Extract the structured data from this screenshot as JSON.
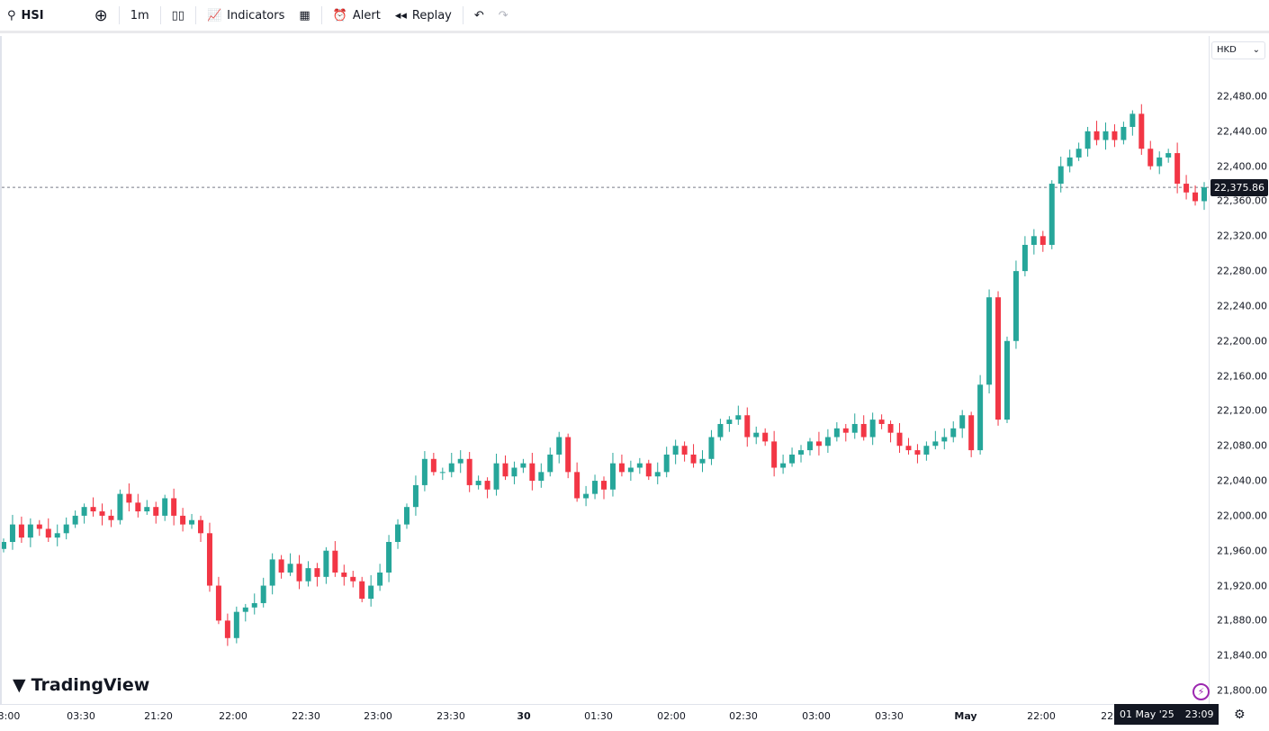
{
  "toolbar": {
    "symbol": "HSI",
    "interval": "1m",
    "indicators": "Indicators",
    "alert": "Alert",
    "replay": "Replay"
  },
  "currency": "HKD",
  "current_price": "22,375.86",
  "crosshair_date": "01 May '25",
  "crosshair_time": "23:09",
  "brand": "TradingView",
  "colors": {
    "up": "#26a69a",
    "down": "#f23645"
  },
  "chart_data": {
    "type": "candlestick",
    "ylim": [
      21790,
      22510
    ],
    "y_ticks": [
      "22,480.00",
      "22,440.00",
      "22,400.00",
      "22,360.00",
      "22,320.00",
      "22,280.00",
      "22,240.00",
      "22,200.00",
      "22,160.00",
      "22,120.00",
      "22,080.00",
      "22,040.00",
      "22,000.00",
      "21,960.00",
      "21,920.00",
      "21,880.00",
      "21,840.00",
      "21,800.00"
    ],
    "x_ticks": [
      "3:00",
      "03:30",
      "21:20",
      "22:00",
      "22:30",
      "23:00",
      "23:30",
      "30",
      "01:30",
      "02:00",
      "02:30",
      "03:00",
      "03:30",
      "May",
      "22:00",
      "22:"
    ],
    "closes": [
      21970,
      21990,
      21975,
      21990,
      21985,
      21975,
      21980,
      21990,
      22000,
      22010,
      22005,
      22000,
      21995,
      22025,
      22015,
      22005,
      22010,
      22000,
      22020,
      22000,
      21990,
      21995,
      21980,
      21920,
      21880,
      21860,
      21890,
      21895,
      21900,
      21920,
      21950,
      21935,
      21945,
      21925,
      21940,
      21930,
      21960,
      21935,
      21930,
      21925,
      21905,
      21920,
      21935,
      21970,
      21990,
      22010,
      22035,
      22065,
      22050,
      22050,
      22060,
      22065,
      22035,
      22040,
      22030,
      22060,
      22045,
      22055,
      22060,
      22040,
      22050,
      22070,
      22090,
      22050,
      22020,
      22025,
      22040,
      22030,
      22060,
      22050,
      22055,
      22060,
      22045,
      22050,
      22070,
      22080,
      22070,
      22060,
      22065,
      22090,
      22105,
      22110,
      22115,
      22090,
      22095,
      22085,
      22055,
      22060,
      22070,
      22075,
      22085,
      22080,
      22090,
      22100,
      22095,
      22105,
      22090,
      22110,
      22105,
      22095,
      22080,
      22075,
      22070,
      22080,
      22085,
      22090,
      22100,
      22115,
      22075,
      22150,
      22250,
      22110,
      22200,
      22280,
      22310,
      22320,
      22310,
      22380,
      22400,
      22410,
      22420,
      22440,
      22430,
      22440,
      22430,
      22445,
      22460,
      22420,
      22400,
      22410,
      22415,
      22380,
      22370,
      22360,
      22375.86
    ]
  }
}
